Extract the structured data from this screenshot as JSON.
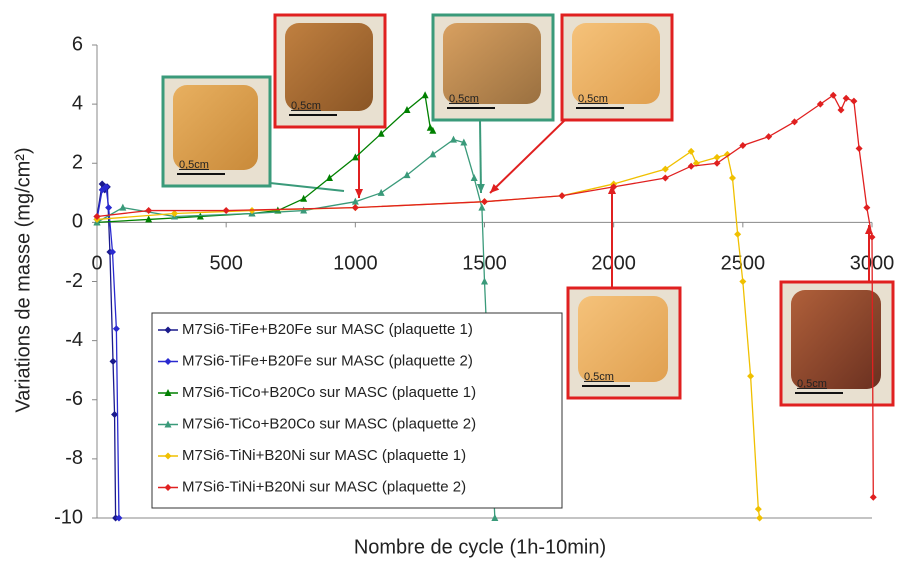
{
  "chart_data": {
    "type": "line",
    "xlabel": "Nombre de cycle (1h-10min)",
    "ylabel": "Variations de masse (mg/cm²)",
    "xlim": [
      0,
      3000
    ],
    "ylim": [
      -10,
      6
    ],
    "xticks": [
      0,
      500,
      1000,
      1500,
      2000,
      2500,
      3000
    ],
    "yticks": [
      -10,
      -8,
      -6,
      -4,
      -2,
      0,
      2,
      4,
      6
    ],
    "legend": "lower left",
    "series": [
      {
        "name": "M7Si6-TiFe+B20Fe sur MASC (plaquette 1)",
        "color": "#1a1a8c",
        "marker": "diamond",
        "x": [
          0,
          20,
          30,
          40,
          50,
          62,
          68,
          72
        ],
        "values": [
          0.2,
          1.3,
          1.1,
          1.2,
          -1,
          -4.7,
          -6.5,
          -10
        ]
      },
      {
        "name": "M7Si6-TiFe+B20Fe sur MASC (plaquette 2)",
        "color": "#2a2ad0",
        "marker": "diamond",
        "x": [
          0,
          20,
          35,
          45,
          60,
          75,
          85
        ],
        "values": [
          0.1,
          1.1,
          1.2,
          0.5,
          -1,
          -3.6,
          -10
        ]
      },
      {
        "name": "M7Si6-TiCo+B20Co sur MASC (plaquette 1)",
        "color": "#008000",
        "marker": "triangle",
        "x": [
          0,
          200,
          400,
          600,
          700,
          800,
          900,
          1000,
          1100,
          1200,
          1270,
          1290,
          1300
        ],
        "values": [
          0,
          0.1,
          0.2,
          0.3,
          0.4,
          0.8,
          1.5,
          2.2,
          3.0,
          3.8,
          4.3,
          3.2,
          3.1
        ]
      },
      {
        "name": "M7Si6-TiCo+B20Co sur MASC (plaquette 2)",
        "color": "#3a9a7a",
        "marker": "triangle",
        "x": [
          0,
          100,
          300,
          600,
          800,
          1000,
          1100,
          1200,
          1300,
          1380,
          1420,
          1460,
          1490,
          1500,
          1530,
          1540
        ],
        "values": [
          0,
          0.5,
          0.2,
          0.3,
          0.4,
          0.7,
          1.0,
          1.6,
          2.3,
          2.8,
          2.7,
          1.5,
          0.5,
          -2,
          -8,
          -10
        ]
      },
      {
        "name": "M7Si6-TiNi+B20Ni sur MASC (plaquette 1)",
        "color": "#f0c000",
        "marker": "diamond",
        "x": [
          0,
          300,
          600,
          1000,
          1500,
          1800,
          2000,
          2200,
          2300,
          2320,
          2400,
          2440,
          2460,
          2480,
          2500,
          2530,
          2560,
          2565
        ],
        "values": [
          0.1,
          0.3,
          0.4,
          0.5,
          0.7,
          0.9,
          1.3,
          1.8,
          2.4,
          2.0,
          2.2,
          2.3,
          1.5,
          -0.4,
          -2,
          -5.2,
          -9.7,
          -10
        ]
      },
      {
        "name": "M7Si6-TiNi+B20Ni sur MASC (plaquette 2)",
        "color": "#e02020",
        "marker": "diamond",
        "x": [
          0,
          200,
          500,
          1000,
          1500,
          1800,
          2000,
          2200,
          2300,
          2400,
          2500,
          2600,
          2700,
          2800,
          2850,
          2880,
          2900,
          2930,
          2950,
          2980,
          3000,
          3005
        ],
        "values": [
          0.2,
          0.4,
          0.4,
          0.5,
          0.7,
          0.9,
          1.2,
          1.5,
          1.9,
          2.0,
          2.6,
          2.9,
          3.4,
          4.0,
          4.3,
          3.8,
          4.2,
          4.1,
          2.5,
          0.5,
          -0.5,
          -9.3
        ]
      }
    ],
    "annotations": [
      {
        "label": "0,5cm",
        "border_color": "#3a9a7a"
      },
      {
        "label": "0,5cm",
        "border_color": "#e02020"
      },
      {
        "label": "0,5cm",
        "border_color": "#3a9a7a"
      },
      {
        "label": "0,5cm",
        "border_color": "#e02020"
      },
      {
        "label": "0,5cm",
        "border_color": "#e02020"
      },
      {
        "label": "0,5cm",
        "border_color": "#e02020"
      }
    ]
  }
}
